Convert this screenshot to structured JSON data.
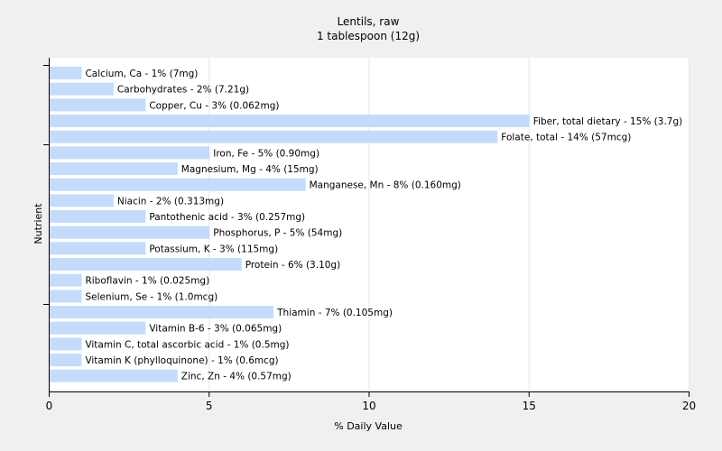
{
  "chart_data": {
    "type": "bar",
    "orientation": "horizontal",
    "title": "Lentils, raw",
    "subtitle": "1 tablespoon (12g)",
    "xlabel": "% Daily Value",
    "ylabel": "Nutrient",
    "xlim": [
      0,
      20
    ],
    "xticks": [
      "0",
      "5",
      "10",
      "15",
      "20"
    ],
    "grid": true,
    "bar_color": "#c4dcfa",
    "categories": [
      "Calcium, Ca - 1% (7mg)",
      "Carbohydrates - 2% (7.21g)",
      "Copper, Cu - 3% (0.062mg)",
      "Fiber, total dietary - 15% (3.7g)",
      "Folate, total - 14% (57mcg)",
      "Iron, Fe - 5% (0.90mg)",
      "Magnesium, Mg - 4% (15mg)",
      "Manganese, Mn - 8% (0.160mg)",
      "Niacin - 2% (0.313mg)",
      "Pantothenic acid - 3% (0.257mg)",
      "Phosphorus, P - 5% (54mg)",
      "Potassium, K - 3% (115mg)",
      "Protein - 6% (3.10g)",
      "Riboflavin - 1% (0.025mg)",
      "Selenium, Se - 1% (1.0mcg)",
      "Thiamin - 7% (0.105mg)",
      "Vitamin B-6 - 3% (0.065mg)",
      "Vitamin C, total ascorbic acid - 1% (0.5mg)",
      "Vitamin K (phylloquinone) - 1% (0.6mcg)",
      "Zinc, Zn - 4% (0.57mg)"
    ],
    "values": [
      1,
      2,
      3,
      15,
      14,
      5,
      4,
      8,
      2,
      3,
      5,
      3,
      6,
      1,
      1,
      7,
      3,
      1,
      1,
      4
    ]
  }
}
